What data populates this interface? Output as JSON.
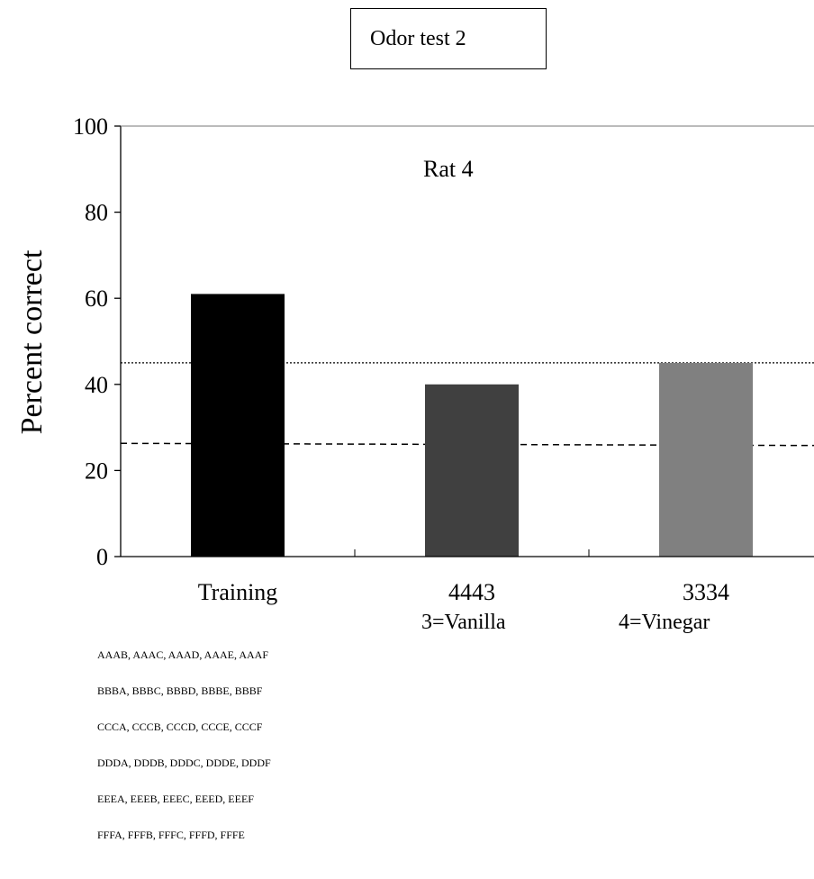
{
  "header": {
    "test_label": "Odor test 2"
  },
  "chart_data": {
    "type": "bar",
    "title": "Rat 4",
    "ylabel": "Percent correct",
    "xlabel": "",
    "ylim": [
      0,
      100
    ],
    "yticks": [
      0,
      20,
      40,
      60,
      80,
      100
    ],
    "grid": false,
    "categories": [
      "Training",
      "4443",
      "3334"
    ],
    "values": [
      61,
      40,
      45
    ],
    "bar_colors": [
      "#000000",
      "#404040",
      "#808080"
    ],
    "reference_lines": [
      {
        "style": "dotted",
        "y_start": 45,
        "y_end": 45
      },
      {
        "style": "dashed",
        "y_start": 26.3,
        "y_end": 25.8
      }
    ],
    "annotations": [
      "3=Vanilla",
      "4=Vinegar"
    ]
  },
  "odor_sets": [
    "AAAB, AAAC, AAAD, AAAE, AAAF",
    "BBBA, BBBC, BBBD, BBBE, BBBF",
    "CCCA, CCCB, CCCD, CCCE, CCCF",
    "DDDA, DDDB, DDDC, DDDE, DDDF",
    "EEEA, EEEB, EEEC, EEED, EEEF",
    "FFFA, FFFB, FFFC, FFFD, FFFE"
  ]
}
